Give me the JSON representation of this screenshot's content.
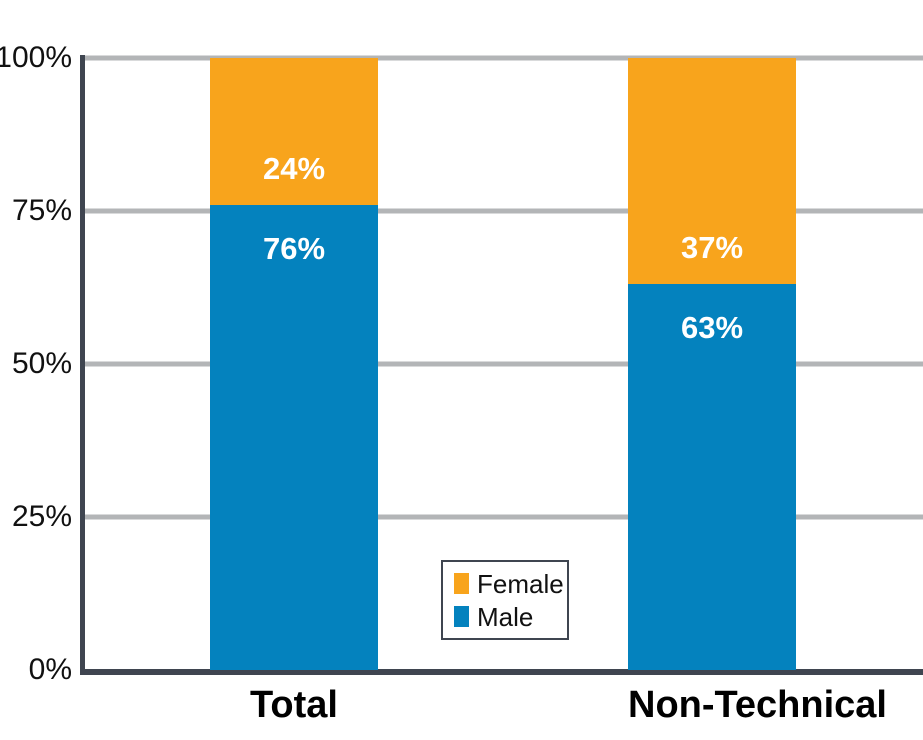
{
  "chart_data": {
    "type": "bar",
    "variant": "stacked-column",
    "title": "",
    "categories": [
      "Total",
      "Non-Technical"
    ],
    "series": [
      {
        "name": "Female",
        "color": "#F8A41C",
        "values": [
          24,
          37
        ],
        "labels": [
          "24%",
          "37%"
        ]
      },
      {
        "name": "Male",
        "color": "#0482BE",
        "values": [
          76,
          63
        ],
        "labels": [
          "76%",
          "63%"
        ]
      }
    ],
    "y_axis": {
      "ticks": [
        "100%",
        "75%",
        "50%",
        "25%",
        "0%"
      ],
      "min": 0,
      "max": 100,
      "unit": "%"
    },
    "grid": true,
    "legend": {
      "position": "inside-bottom-center",
      "entries": [
        "Female",
        "Male"
      ]
    },
    "colors": {
      "axis": "#3F4550",
      "gridline": "#B3B5B7",
      "value_label_text": "#FFFFFF",
      "axis_label_text": "#111111"
    }
  }
}
